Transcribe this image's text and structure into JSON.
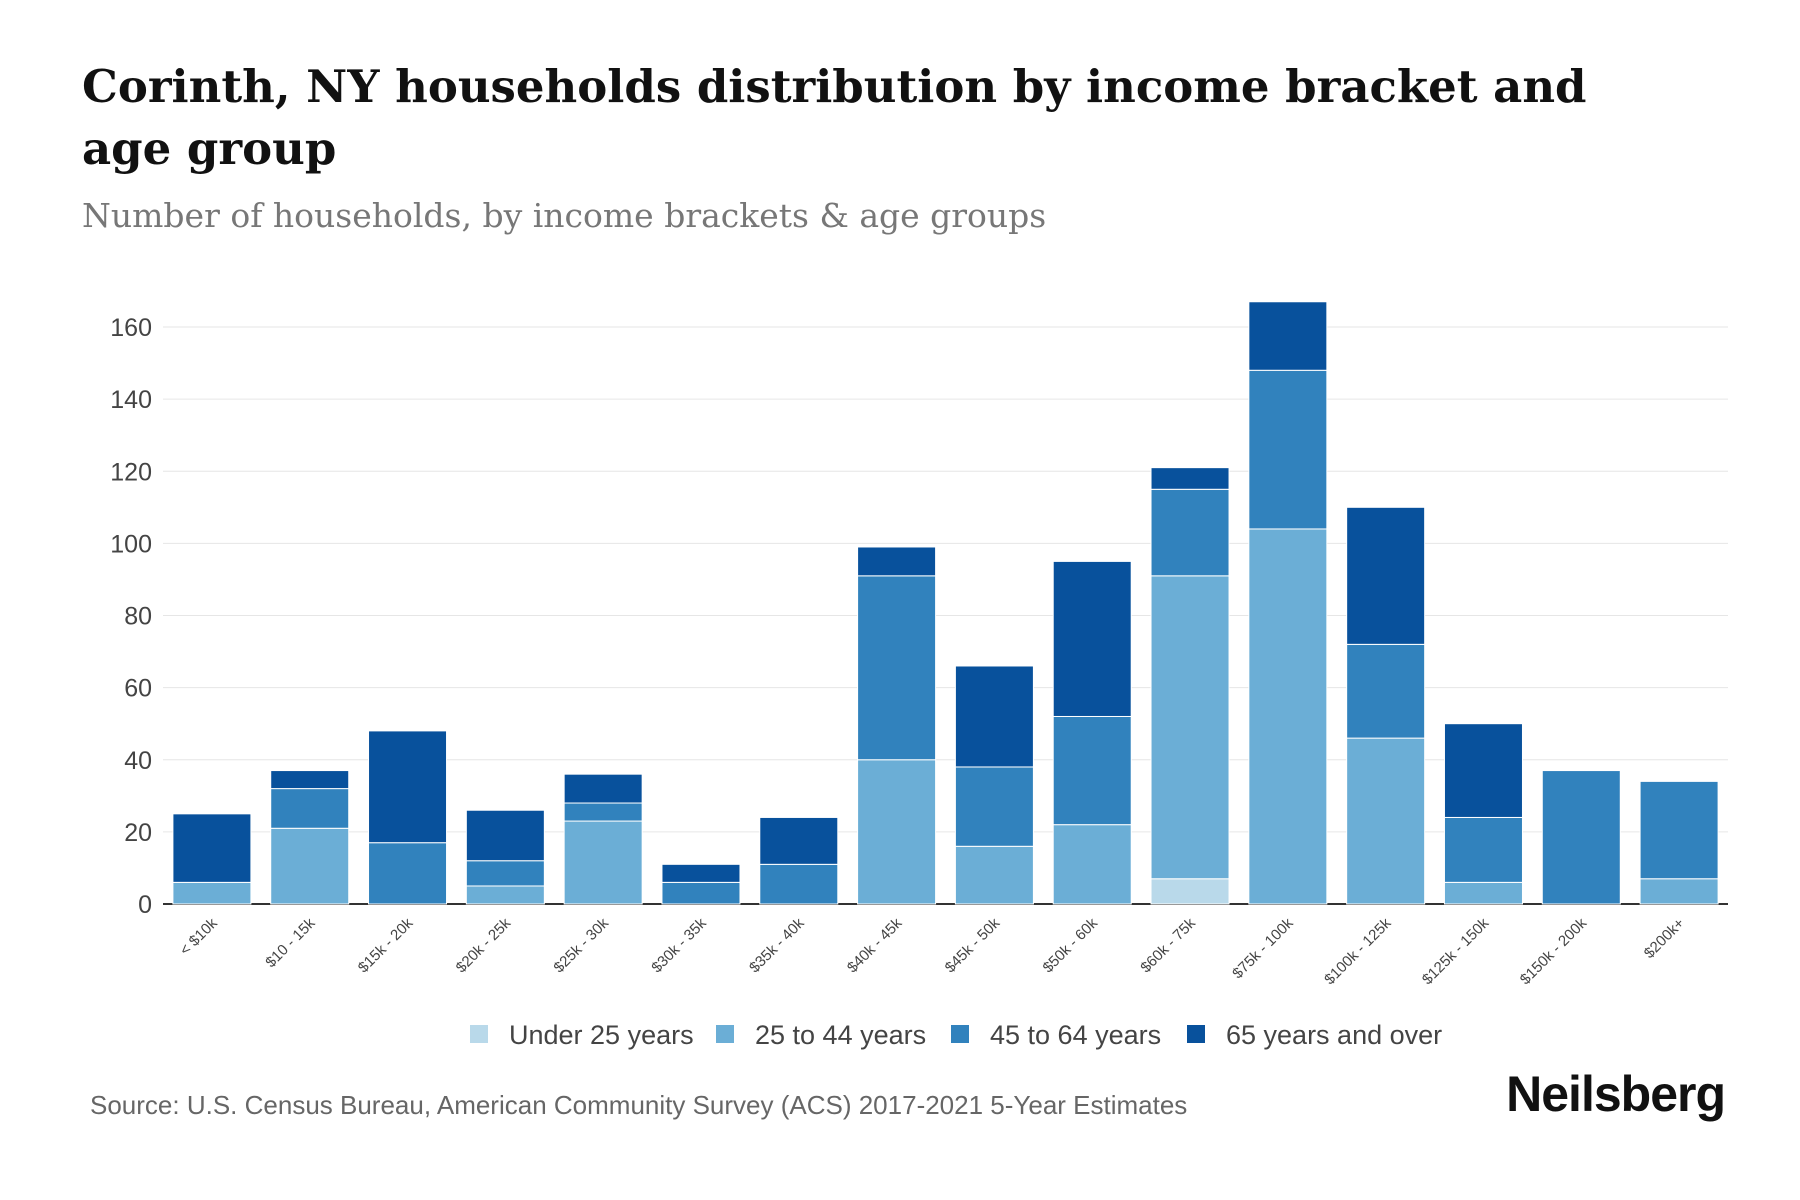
{
  "header": {
    "title": "Corinth, NY households distribution by income bracket and age group",
    "subtitle": "Number of households, by income brackets & age groups"
  },
  "footer": {
    "source": "Source: U.S. Census Bureau, American Community Survey (ACS) 2017-2021 5-Year Estimates",
    "brand": "Neilsberg"
  },
  "chart_data": {
    "type": "bar",
    "stacked": true,
    "title": "Corinth, NY households distribution by income bracket and age group",
    "subtitle": "Number of households, by income brackets & age groups",
    "xlabel": "",
    "ylabel": "",
    "ylim": [
      0,
      170
    ],
    "yticks": [
      0,
      20,
      40,
      60,
      80,
      100,
      120,
      140,
      160
    ],
    "grid": true,
    "legend_position": "bottom",
    "categories": [
      "< $10k",
      "$10 - 15k",
      "$15k - 20k",
      "$20k - 25k",
      "$25k - 30k",
      "$30k - 35k",
      "$35k - 40k",
      "$40k - 45k",
      "$45k - 50k",
      "$50k - 60k",
      "$60k - 75k",
      "$75k - 100k",
      "$100k - 125k",
      "$125k - 150k",
      "$150k - 200k",
      "$200k+"
    ],
    "series": [
      {
        "name": "Under 25 years",
        "color": "#b9d9ea",
        "values": [
          0,
          0,
          0,
          0,
          0,
          0,
          0,
          0,
          0,
          0,
          7,
          0,
          0,
          0,
          0,
          0
        ]
      },
      {
        "name": "25 to 44 years",
        "color": "#6baed6",
        "values": [
          6,
          21,
          0,
          5,
          23,
          0,
          0,
          40,
          16,
          22,
          84,
          104,
          46,
          6,
          0,
          7
        ]
      },
      {
        "name": "45 to 64 years",
        "color": "#3182bd",
        "values": [
          0,
          11,
          17,
          7,
          5,
          6,
          11,
          51,
          22,
          30,
          24,
          44,
          26,
          18,
          37,
          27
        ]
      },
      {
        "name": "65 years and over",
        "color": "#08519c",
        "values": [
          19,
          5,
          31,
          14,
          8,
          5,
          13,
          8,
          28,
          43,
          6,
          19,
          38,
          26,
          0,
          0
        ]
      }
    ]
  }
}
